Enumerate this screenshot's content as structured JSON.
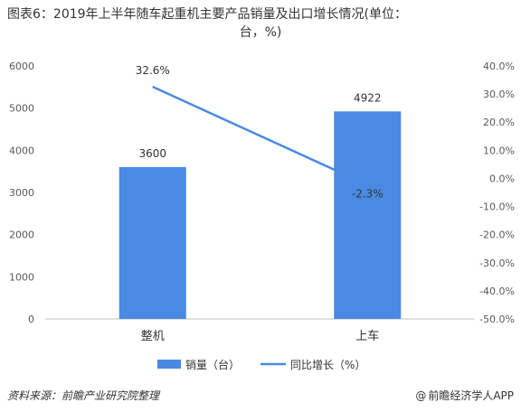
{
  "title_line1": "图表6：2019年上半年随车起重机主要产品销量及出口增长情况(单位：",
  "title_line2": "台，%)",
  "chart_data": {
    "type": "bar+line",
    "categories": [
      "整机",
      "上车"
    ],
    "bar_series": {
      "name": "销量（台）",
      "values": [
        3600,
        4922
      ],
      "color": "#4a8ae2"
    },
    "line_series": {
      "name": "同比增长（%）",
      "values": [
        32.6,
        -2.3
      ],
      "color": "#4a8ae2"
    },
    "bar_labels": [
      "3600",
      "4922"
    ],
    "line_labels": [
      "32.6%",
      "-2.3%"
    ],
    "y_left": {
      "min": 0,
      "max": 6000,
      "ticks": [
        "0",
        "1000",
        "2000",
        "3000",
        "4000",
        "5000",
        "6000"
      ]
    },
    "y_right": {
      "min": -50,
      "max": 40,
      "ticks": [
        "-50.0%",
        "-40.0%",
        "-30.0%",
        "-20.0%",
        "-10.0%",
        "0.0%",
        "10.0%",
        "20.0%",
        "30.0%",
        "40.0%"
      ]
    },
    "grid": false,
    "legend_position": "bottom"
  },
  "footer": {
    "source": "资料来源：前瞻产业研究院整理",
    "credit": "前瞻经济学人APP",
    "credit_icon": "at-icon"
  }
}
